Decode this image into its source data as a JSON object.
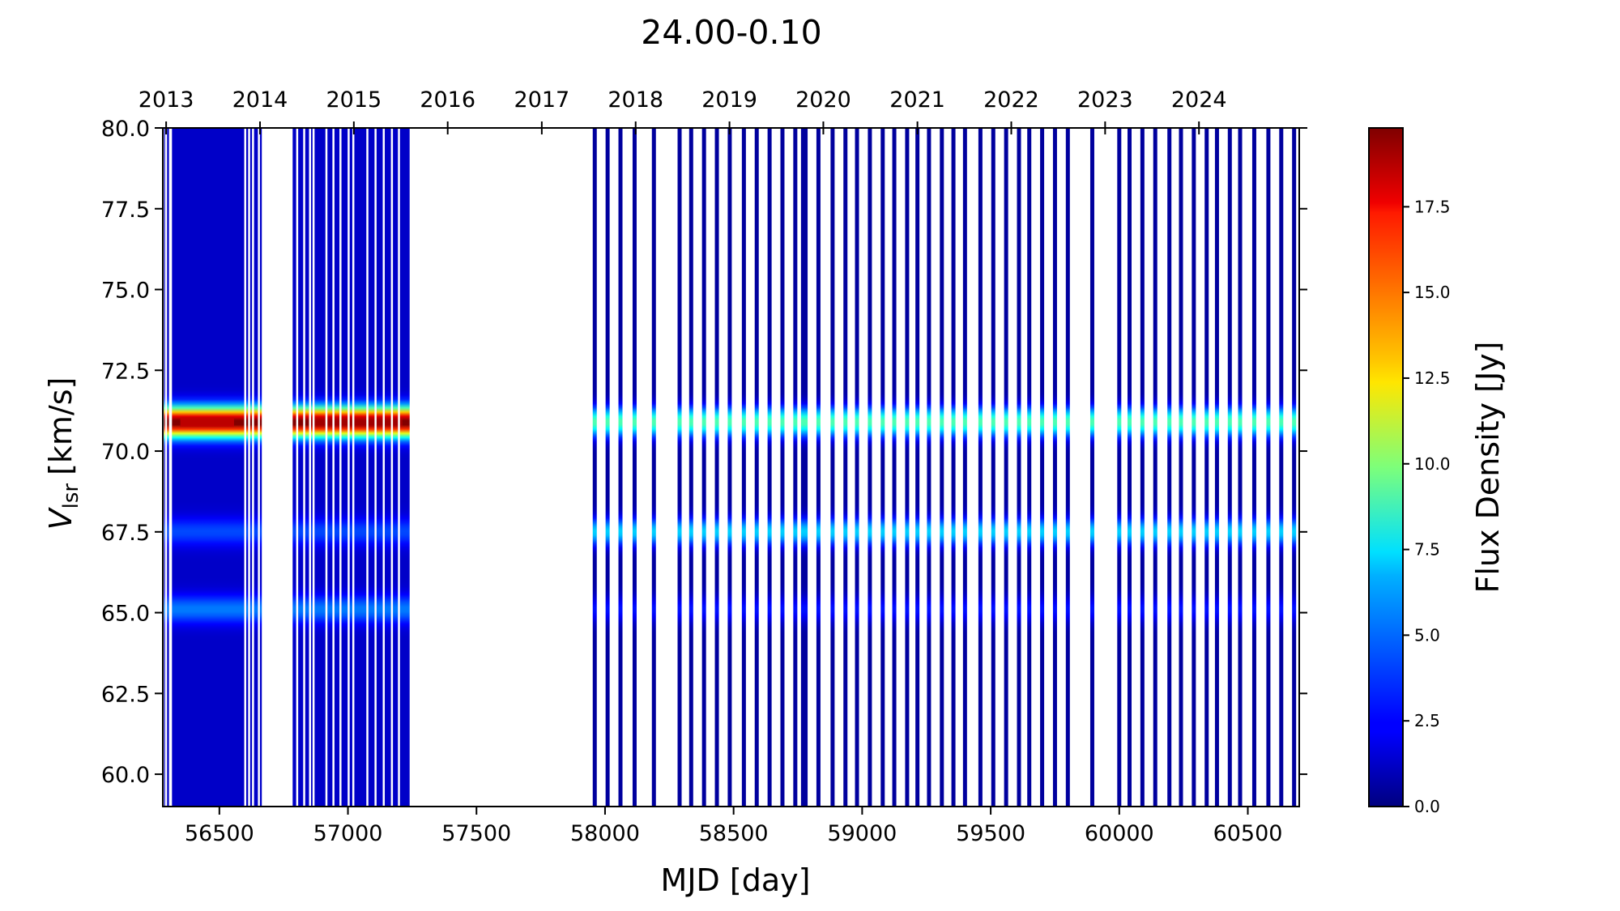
{
  "chart_data": {
    "type": "heatmap",
    "title": "24.00-0.10",
    "xlabel": "MJD [day]",
    "ylabel_main": "V",
    "ylabel_sub": "lsr",
    "ylabel_unit": "[km/s]",
    "colorbar_label": "Flux Density [Jy]",
    "xlim": [
      56280,
      60700
    ],
    "ylim": [
      59.0,
      80.0
    ],
    "x_ticks": [
      "56500",
      "57000",
      "57500",
      "58000",
      "58500",
      "59000",
      "59500",
      "60000",
      "60500"
    ],
    "y_ticks": [
      "60.0",
      "62.5",
      "65.0",
      "67.5",
      "70.0",
      "72.5",
      "75.0",
      "77.5",
      "80.0"
    ],
    "top_axis": {
      "years": [
        "2013",
        "2014",
        "2015",
        "2016",
        "2017",
        "2018",
        "2019",
        "2020",
        "2021",
        "2022",
        "2023",
        "2024"
      ],
      "mjd": [
        56293,
        56658,
        57023,
        57388,
        57754,
        58119,
        58484,
        58849,
        59215,
        59580,
        59945,
        60310
      ]
    },
    "colorbar": {
      "range": [
        0,
        19.8
      ],
      "ticks": [
        "0.0",
        "2.5",
        "5.0",
        "7.5",
        "10.0",
        "12.5",
        "15.0",
        "17.5"
      ],
      "colormap": "jet"
    },
    "emission_features": [
      {
        "velocity": 70.9,
        "peak_flux_early": 19.0,
        "peak_flux_late": 8.5
      },
      {
        "velocity": 67.5,
        "peak_flux_early": 2.5,
        "peak_flux_late": 6.0
      },
      {
        "velocity": 65.1,
        "peak_flux_early": 3.5,
        "peak_flux_late": 2.2
      }
    ],
    "observations_dense": [
      {
        "start": 56285,
        "end": 56665
      },
      {
        "start": 56785,
        "end": 57240
      }
    ],
    "observations_sparse_mjd": [
      57960,
      58010,
      58060,
      58115,
      58190,
      58290,
      58335,
      58385,
      58435,
      58485,
      58540,
      58590,
      58640,
      58690,
      58740,
      58770,
      58780,
      58830,
      58885,
      58935,
      58980,
      59030,
      59080,
      59125,
      59175,
      59215,
      59260,
      59310,
      59355,
      59400,
      59460,
      59510,
      59560,
      59610,
      59650,
      59700,
      59750,
      59800,
      59895,
      60000,
      60040,
      60090,
      60140,
      60195,
      60240,
      60290,
      60340,
      60380,
      60430,
      60470,
      60525,
      60580,
      60630,
      60680
    ]
  }
}
